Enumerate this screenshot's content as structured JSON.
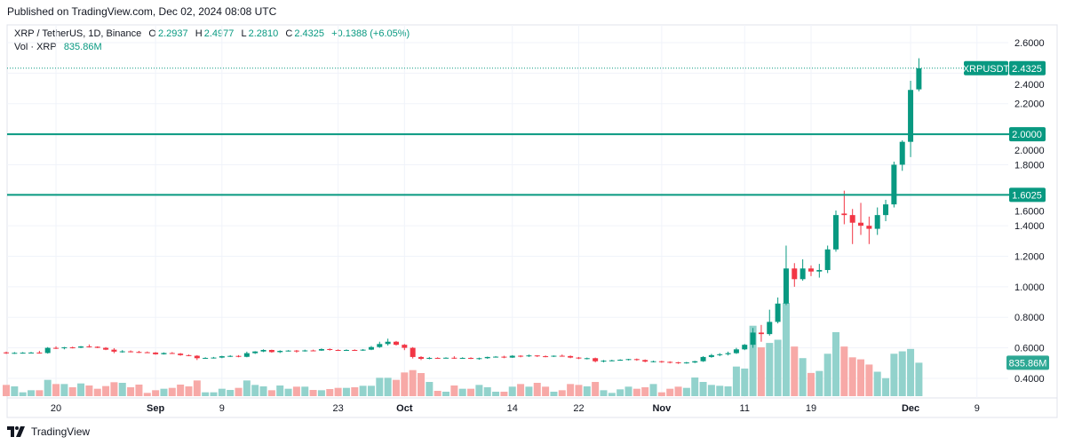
{
  "header": {
    "published": "Published on TradingView.com, Dec 02, 2024 08:08 UTC"
  },
  "legend": {
    "symbol": "XRP / TetherUS, 1D, Binance",
    "open_label": "O",
    "open": "2.2937",
    "high_label": "H",
    "high": "2.4977",
    "low_label": "L",
    "low": "2.2810",
    "close_label": "C",
    "close": "2.4325",
    "change": "+0.1388 (+6.05%)",
    "vol_label": "Vol · XRP",
    "vol": "835.86M"
  },
  "footer": {
    "brand": "TradingView"
  },
  "colors": {
    "up": "#089981",
    "down": "#f23645",
    "vol_up": "#92d2cc",
    "vol_down": "#f7a9a7",
    "level": "#089981"
  },
  "chart_data": {
    "type": "candlestick",
    "symbol_tag": "XRPUSDT",
    "last_price_label": "2.4325",
    "volume_label": "835.86M",
    "levels": [
      {
        "value": 2.0,
        "label": "2.0000"
      },
      {
        "value": 1.6025,
        "label": "1.6025"
      }
    ],
    "ylim": [
      0.3,
      2.65
    ],
    "y_ticks": [
      "2.6000",
      "2.4000",
      "2.2000",
      "2.0000",
      "1.8000",
      "1.6000",
      "1.4000",
      "1.2000",
      "1.0000",
      "0.8000",
      "0.6000",
      "0.4000"
    ],
    "x_ticks": [
      {
        "label": "20",
        "date": "2024-08-20",
        "bold": false
      },
      {
        "label": "Sep",
        "date": "2024-09-01",
        "bold": true
      },
      {
        "label": "9",
        "date": "2024-09-09",
        "bold": false
      },
      {
        "label": "23",
        "date": "2024-09-23",
        "bold": false
      },
      {
        "label": "Oct",
        "date": "2024-10-01",
        "bold": true
      },
      {
        "label": "14",
        "date": "2024-10-14",
        "bold": false
      },
      {
        "label": "22",
        "date": "2024-10-22",
        "bold": false
      },
      {
        "label": "Nov",
        "date": "2024-11-01",
        "bold": true
      },
      {
        "label": "11",
        "date": "2024-11-11",
        "bold": false
      },
      {
        "label": "19",
        "date": "2024-11-19",
        "bold": false
      },
      {
        "label": "Dec",
        "date": "2024-12-01",
        "bold": true
      },
      {
        "label": "9",
        "date": "2024-12-09",
        "bold": false
      }
    ],
    "grid": true,
    "columns": [
      "date",
      "open",
      "high",
      "low",
      "close",
      "volume_M"
    ],
    "rows": [
      [
        "2024-08-14",
        0.57,
        0.575,
        0.56,
        0.565,
        281
      ],
      [
        "2024-08-15",
        0.565,
        0.572,
        0.56,
        0.567,
        244
      ],
      [
        "2024-08-16",
        0.567,
        0.572,
        0.562,
        0.568,
        96
      ],
      [
        "2024-08-17",
        0.568,
        0.573,
        0.564,
        0.569,
        148
      ],
      [
        "2024-08-18",
        0.569,
        0.58,
        0.562,
        0.565,
        148
      ],
      [
        "2024-08-19",
        0.566,
        0.605,
        0.562,
        0.6,
        407
      ],
      [
        "2024-08-20",
        0.6,
        0.61,
        0.592,
        0.598,
        303
      ],
      [
        "2024-08-21",
        0.598,
        0.606,
        0.59,
        0.603,
        303
      ],
      [
        "2024-08-22",
        0.603,
        0.608,
        0.596,
        0.601,
        222
      ],
      [
        "2024-08-23",
        0.601,
        0.612,
        0.598,
        0.609,
        318
      ],
      [
        "2024-08-24",
        0.609,
        0.622,
        0.602,
        0.607,
        266
      ],
      [
        "2024-08-25",
        0.607,
        0.61,
        0.598,
        0.6,
        185
      ],
      [
        "2024-08-26",
        0.6,
        0.605,
        0.585,
        0.588,
        252
      ],
      [
        "2024-08-27",
        0.588,
        0.598,
        0.565,
        0.575,
        348
      ],
      [
        "2024-08-28",
        0.575,
        0.585,
        0.568,
        0.577,
        333
      ],
      [
        "2024-08-29",
        0.577,
        0.583,
        0.57,
        0.573,
        222
      ],
      [
        "2024-08-30",
        0.573,
        0.58,
        0.566,
        0.571,
        289
      ],
      [
        "2024-08-31",
        0.571,
        0.576,
        0.566,
        0.569,
        81
      ],
      [
        "2024-09-01",
        0.569,
        0.572,
        0.555,
        0.558,
        148
      ],
      [
        "2024-09-02",
        0.558,
        0.57,
        0.556,
        0.566,
        185
      ],
      [
        "2024-09-03",
        0.566,
        0.572,
        0.56,
        0.562,
        207
      ],
      [
        "2024-09-04",
        0.562,
        0.566,
        0.548,
        0.552,
        289
      ],
      [
        "2024-09-05",
        0.552,
        0.556,
        0.545,
        0.548,
        244
      ],
      [
        "2024-09-06",
        0.548,
        0.552,
        0.52,
        0.532,
        392
      ],
      [
        "2024-09-07",
        0.532,
        0.538,
        0.528,
        0.534,
        96
      ],
      [
        "2024-09-08",
        0.534,
        0.54,
        0.53,
        0.536,
        96
      ],
      [
        "2024-09-09",
        0.536,
        0.548,
        0.532,
        0.545,
        185
      ],
      [
        "2024-09-10",
        0.545,
        0.552,
        0.54,
        0.547,
        155
      ],
      [
        "2024-09-11",
        0.547,
        0.552,
        0.538,
        0.541,
        207
      ],
      [
        "2024-09-12",
        0.541,
        0.575,
        0.538,
        0.565,
        392
      ],
      [
        "2024-09-13",
        0.565,
        0.578,
        0.56,
        0.576,
        281
      ],
      [
        "2024-09-14",
        0.576,
        0.59,
        0.572,
        0.586,
        244
      ],
      [
        "2024-09-15",
        0.586,
        0.588,
        0.568,
        0.572,
        148
      ],
      [
        "2024-09-16",
        0.572,
        0.584,
        0.566,
        0.58,
        266
      ],
      [
        "2024-09-17",
        0.58,
        0.585,
        0.576,
        0.582,
        185
      ],
      [
        "2024-09-18",
        0.582,
        0.586,
        0.568,
        0.58,
        237
      ],
      [
        "2024-09-19",
        0.58,
        0.588,
        0.575,
        0.583,
        237
      ],
      [
        "2024-09-20",
        0.583,
        0.588,
        0.578,
        0.582,
        155
      ],
      [
        "2024-09-21",
        0.582,
        0.596,
        0.58,
        0.592,
        148
      ],
      [
        "2024-09-22",
        0.592,
        0.596,
        0.582,
        0.586,
        178
      ],
      [
        "2024-09-23",
        0.586,
        0.59,
        0.58,
        0.584,
        207
      ],
      [
        "2024-09-24",
        0.584,
        0.59,
        0.58,
        0.586,
        207
      ],
      [
        "2024-09-25",
        0.586,
        0.59,
        0.58,
        0.583,
        222
      ],
      [
        "2024-09-26",
        0.583,
        0.592,
        0.58,
        0.588,
        259
      ],
      [
        "2024-09-27",
        0.588,
        0.612,
        0.585,
        0.605,
        259
      ],
      [
        "2024-09-28",
        0.605,
        0.64,
        0.6,
        0.625,
        459
      ],
      [
        "2024-09-29",
        0.625,
        0.66,
        0.615,
        0.64,
        459
      ],
      [
        "2024-09-30",
        0.64,
        0.645,
        0.615,
        0.62,
        407
      ],
      [
        "2024-10-01",
        0.62,
        0.625,
        0.585,
        0.6,
        592
      ],
      [
        "2024-10-02",
        0.6,
        0.605,
        0.53,
        0.54,
        651
      ],
      [
        "2024-10-03",
        0.54,
        0.545,
        0.52,
        0.528,
        577
      ],
      [
        "2024-10-04",
        0.528,
        0.54,
        0.525,
        0.534,
        355
      ],
      [
        "2024-10-05",
        0.534,
        0.538,
        0.53,
        0.533,
        133
      ],
      [
        "2024-10-06",
        0.533,
        0.538,
        0.53,
        0.535,
        111
      ],
      [
        "2024-10-07",
        0.535,
        0.545,
        0.528,
        0.532,
        266
      ],
      [
        "2024-10-08",
        0.532,
        0.538,
        0.528,
        0.534,
        185
      ],
      [
        "2024-10-09",
        0.534,
        0.538,
        0.526,
        0.528,
        185
      ],
      [
        "2024-10-10",
        0.528,
        0.536,
        0.522,
        0.532,
        281
      ],
      [
        "2024-10-11",
        0.532,
        0.542,
        0.528,
        0.54,
        222
      ],
      [
        "2024-10-12",
        0.54,
        0.546,
        0.536,
        0.542,
        111
      ],
      [
        "2024-10-13",
        0.542,
        0.548,
        0.532,
        0.536,
        111
      ],
      [
        "2024-10-14",
        0.536,
        0.552,
        0.534,
        0.548,
        237
      ],
      [
        "2024-10-15",
        0.548,
        0.552,
        0.538,
        0.546,
        303
      ],
      [
        "2024-10-16",
        0.546,
        0.556,
        0.54,
        0.55,
        237
      ],
      [
        "2024-10-17",
        0.55,
        0.552,
        0.54,
        0.545,
        333
      ],
      [
        "2024-10-18",
        0.545,
        0.55,
        0.538,
        0.544,
        237
      ],
      [
        "2024-10-19",
        0.544,
        0.55,
        0.54,
        0.548,
        111
      ],
      [
        "2024-10-20",
        0.548,
        0.556,
        0.542,
        0.546,
        148
      ],
      [
        "2024-10-21",
        0.546,
        0.55,
        0.532,
        0.536,
        303
      ],
      [
        "2024-10-22",
        0.536,
        0.54,
        0.526,
        0.53,
        281
      ],
      [
        "2024-10-23",
        0.53,
        0.536,
        0.524,
        0.532,
        244
      ],
      [
        "2024-10-24",
        0.532,
        0.536,
        0.505,
        0.512,
        355
      ],
      [
        "2024-10-25",
        0.512,
        0.52,
        0.505,
        0.516,
        148
      ],
      [
        "2024-10-26",
        0.516,
        0.522,
        0.512,
        0.518,
        81
      ],
      [
        "2024-10-27",
        0.518,
        0.525,
        0.515,
        0.522,
        170
      ],
      [
        "2024-10-28",
        0.522,
        0.528,
        0.518,
        0.526,
        237
      ],
      [
        "2024-10-29",
        0.526,
        0.53,
        0.515,
        0.52,
        185
      ],
      [
        "2024-10-30",
        0.52,
        0.524,
        0.505,
        0.51,
        222
      ],
      [
        "2024-10-31",
        0.51,
        0.516,
        0.505,
        0.512,
        303
      ],
      [
        "2024-11-01",
        0.512,
        0.515,
        0.502,
        0.508,
        96
      ],
      [
        "2024-11-02",
        0.508,
        0.512,
        0.498,
        0.505,
        185
      ],
      [
        "2024-11-03",
        0.505,
        0.508,
        0.495,
        0.5,
        237
      ],
      [
        "2024-11-04",
        0.5,
        0.508,
        0.496,
        0.504,
        207
      ],
      [
        "2024-11-05",
        0.504,
        0.515,
        0.5,
        0.512,
        466
      ],
      [
        "2024-11-06",
        0.512,
        0.545,
        0.508,
        0.54,
        355
      ],
      [
        "2024-11-07",
        0.54,
        0.56,
        0.535,
        0.552,
        281
      ],
      [
        "2024-11-08",
        0.552,
        0.565,
        0.545,
        0.558,
        259
      ],
      [
        "2024-11-09",
        0.558,
        0.575,
        0.55,
        0.565,
        244
      ],
      [
        "2024-11-10",
        0.565,
        0.6,
        0.56,
        0.59,
        740
      ],
      [
        "2024-11-11",
        0.59,
        0.625,
        0.585,
        0.62,
        690
      ],
      [
        "2024-11-12",
        0.62,
        0.73,
        0.6,
        0.7,
        1760
      ],
      [
        "2024-11-13",
        0.7,
        0.75,
        0.64,
        0.69,
        1220
      ],
      [
        "2024-11-14",
        0.69,
        0.85,
        0.68,
        0.77,
        1330
      ],
      [
        "2024-11-15",
        0.77,
        0.93,
        0.76,
        0.89,
        1410
      ],
      [
        "2024-11-16",
        0.89,
        1.27,
        0.88,
        1.12,
        2330
      ],
      [
        "2024-11-17",
        1.12,
        1.155,
        1.0,
        1.05,
        1240
      ],
      [
        "2024-11-18",
        1.05,
        1.18,
        1.04,
        1.12,
        950
      ],
      [
        "2024-11-19",
        1.12,
        1.14,
        1.07,
        1.1,
        580
      ],
      [
        "2024-11-20",
        1.1,
        1.15,
        1.06,
        1.11,
        630
      ],
      [
        "2024-11-21",
        1.11,
        1.27,
        1.09,
        1.245,
        1060
      ],
      [
        "2024-11-22",
        1.245,
        1.5,
        1.23,
        1.47,
        1600
      ],
      [
        "2024-11-23",
        1.48,
        1.63,
        1.41,
        1.47,
        1240
      ],
      [
        "2024-11-24",
        1.47,
        1.51,
        1.28,
        1.42,
        970
      ],
      [
        "2024-11-25",
        1.42,
        1.55,
        1.34,
        1.4,
        920
      ],
      [
        "2024-11-26",
        1.4,
        1.46,
        1.28,
        1.38,
        790
      ],
      [
        "2024-11-27",
        1.38,
        1.52,
        1.34,
        1.47,
        610
      ],
      [
        "2024-11-28",
        1.47,
        1.57,
        1.43,
        1.54,
        450
      ],
      [
        "2024-11-29",
        1.54,
        1.82,
        1.52,
        1.8,
        1060
      ],
      [
        "2024-11-30",
        1.8,
        1.96,
        1.76,
        1.95,
        1120
      ],
      [
        "2024-12-01",
        1.95,
        2.35,
        1.85,
        2.29,
        1180
      ],
      [
        "2024-12-02",
        2.2937,
        2.4977,
        2.281,
        2.4325,
        835.86
      ]
    ]
  }
}
